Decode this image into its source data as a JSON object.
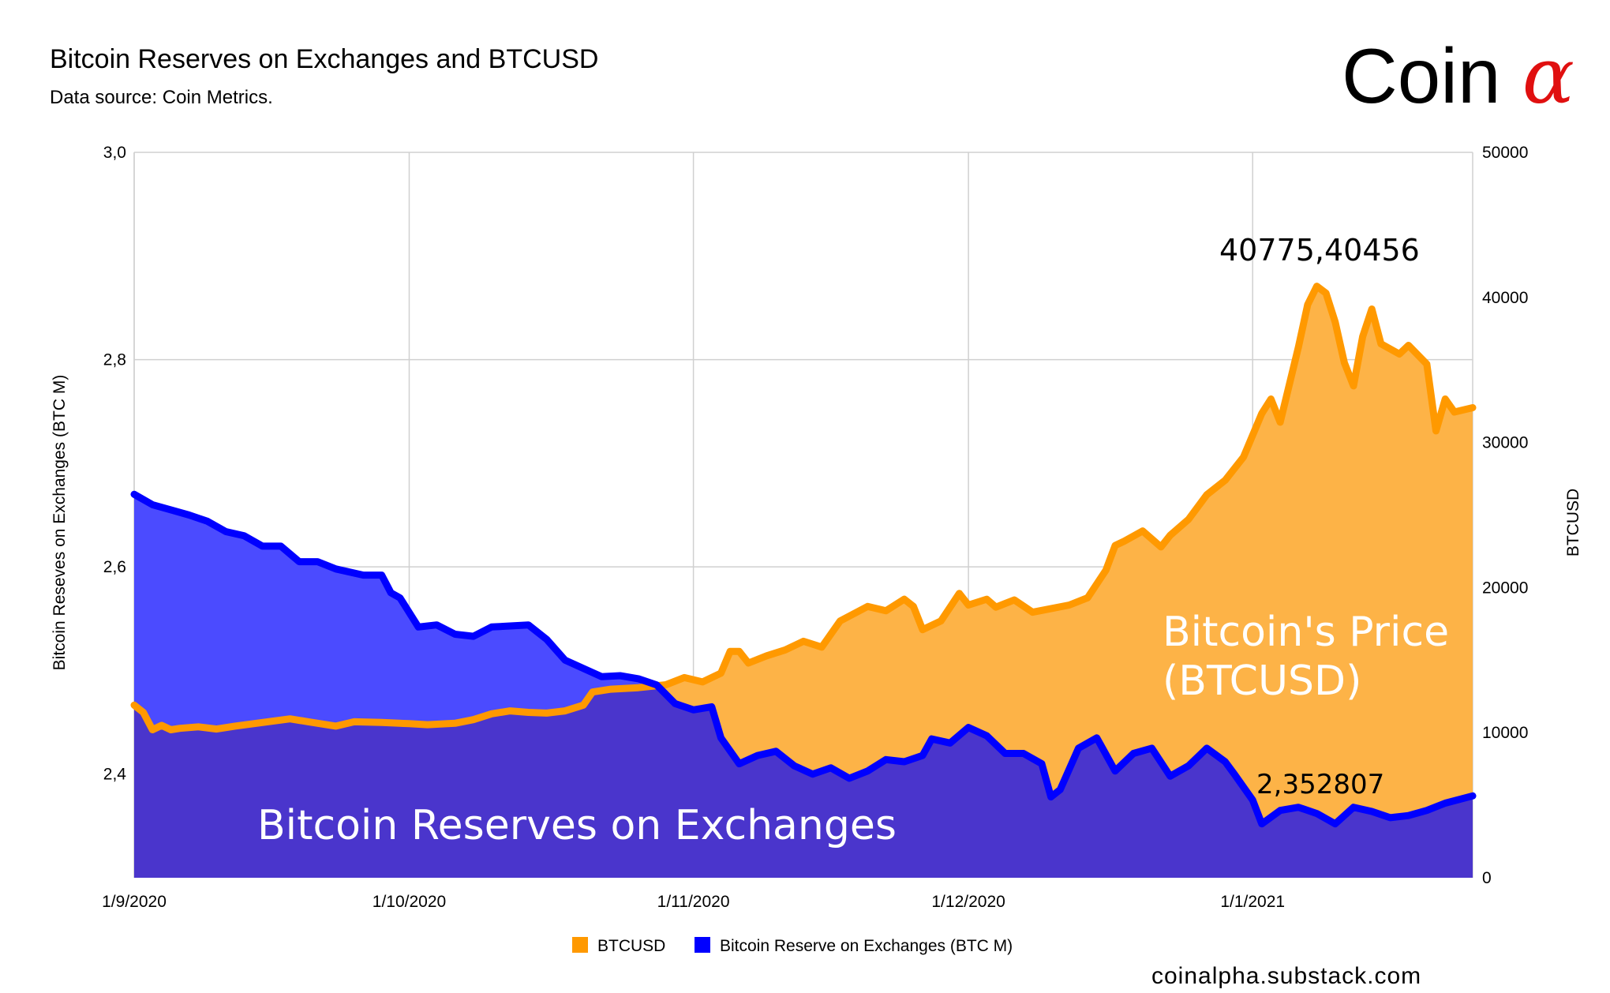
{
  "header": {
    "title": "Bitcoin Reserves on Exchanges and BTCUSD",
    "subtitle": "Data source: Coin Metrics.",
    "brand_text": "Coin",
    "brand_symbol": "α",
    "footer": "coinalpha.substack.com"
  },
  "colors": {
    "btcusd_line": "#ff9900",
    "btcusd_fill": "#fdb347",
    "reserve_line": "#0000ff",
    "reserve_fill_alone": "#4b4bff",
    "reserve_fill_overlap": "#4a35cc",
    "grid": "#d0d0d0",
    "brand_alpha": "#e01010"
  },
  "chart_data": {
    "type": "area",
    "title": "Bitcoin Reserves on Exchanges and BTCUSD",
    "x_tick_labels": [
      "1/9/2020",
      "1/10/2020",
      "1/11/2020",
      "1/12/2020",
      "1/1/2021"
    ],
    "x_range": [
      "2020-09-01",
      "2021-01-25"
    ],
    "y_left": {
      "label": "Bitcoin Reseves on Exchanges (BTC M)",
      "range": [
        2.3,
        3.0
      ],
      "tick_labels": [
        "2,4",
        "2,6",
        "2,8",
        "3,0"
      ]
    },
    "y_right": {
      "label": "BTCUSD",
      "range": [
        0,
        50000
      ],
      "tick_labels": [
        "0",
        "10000",
        "20000",
        "30000",
        "40000",
        "50000"
      ]
    },
    "grid": true,
    "legend_position": "bottom",
    "legend": [
      "BTCUSD",
      "Bitcoin Reserve on Exchanges (BTC M)"
    ],
    "annotations": {
      "peak_label": "40775,40456",
      "last_reserve_label": "2,352807",
      "price_area_label": [
        "Bitcoin's Price",
        "(BTCUSD)"
      ],
      "reserve_area_label": "Bitcoin Reserves on Exchanges"
    },
    "series": [
      {
        "name": "BTCUSD",
        "axis": "right",
        "points": [
          [
            "2020-09-01",
            11900
          ],
          [
            "2020-09-02",
            11400
          ],
          [
            "2020-09-03",
            10200
          ],
          [
            "2020-09-04",
            10500
          ],
          [
            "2020-09-05",
            10200
          ],
          [
            "2020-09-06",
            10300
          ],
          [
            "2020-09-08",
            10400
          ],
          [
            "2020-09-10",
            10250
          ],
          [
            "2020-09-12",
            10450
          ],
          [
            "2020-09-15",
            10700
          ],
          [
            "2020-09-18",
            10950
          ],
          [
            "2020-09-20",
            10750
          ],
          [
            "2020-09-23",
            10450
          ],
          [
            "2020-09-25",
            10750
          ],
          [
            "2020-09-28",
            10700
          ],
          [
            "2020-10-01",
            10620
          ],
          [
            "2020-10-03",
            10550
          ],
          [
            "2020-10-06",
            10650
          ],
          [
            "2020-10-08",
            10900
          ],
          [
            "2020-10-10",
            11300
          ],
          [
            "2020-10-12",
            11500
          ],
          [
            "2020-10-14",
            11400
          ],
          [
            "2020-10-16",
            11350
          ],
          [
            "2020-10-18",
            11500
          ],
          [
            "2020-10-20",
            11900
          ],
          [
            "2020-10-21",
            12800
          ],
          [
            "2020-10-23",
            13000
          ],
          [
            "2020-10-26",
            13100
          ],
          [
            "2020-10-29",
            13300
          ],
          [
            "2020-10-31",
            13800
          ],
          [
            "2020-11-02",
            13500
          ],
          [
            "2020-11-04",
            14100
          ],
          [
            "2020-11-05",
            15600
          ],
          [
            "2020-11-06",
            15600
          ],
          [
            "2020-11-07",
            14800
          ],
          [
            "2020-11-09",
            15300
          ],
          [
            "2020-11-11",
            15700
          ],
          [
            "2020-11-13",
            16300
          ],
          [
            "2020-11-15",
            15900
          ],
          [
            "2020-11-17",
            17700
          ],
          [
            "2020-11-20",
            18700
          ],
          [
            "2020-11-22",
            18400
          ],
          [
            "2020-11-24",
            19200
          ],
          [
            "2020-11-25",
            18700
          ],
          [
            "2020-11-26",
            17100
          ],
          [
            "2020-11-28",
            17700
          ],
          [
            "2020-11-30",
            19600
          ],
          [
            "2020-12-01",
            18800
          ],
          [
            "2020-12-03",
            19200
          ],
          [
            "2020-12-04",
            18650
          ],
          [
            "2020-12-06",
            19150
          ],
          [
            "2020-12-08",
            18300
          ],
          [
            "2020-12-10",
            18550
          ],
          [
            "2020-12-12",
            18800
          ],
          [
            "2020-12-14",
            19300
          ],
          [
            "2020-12-16",
            21200
          ],
          [
            "2020-12-17",
            22900
          ],
          [
            "2020-12-18",
            23200
          ],
          [
            "2020-12-20",
            23900
          ],
          [
            "2020-12-22",
            22800
          ],
          [
            "2020-12-23",
            23600
          ],
          [
            "2020-12-25",
            24700
          ],
          [
            "2020-12-27",
            26400
          ],
          [
            "2020-12-29",
            27400
          ],
          [
            "2020-12-31",
            29000
          ],
          [
            "2021-01-02",
            32000
          ],
          [
            "2021-01-03",
            33000
          ],
          [
            "2021-01-04",
            31400
          ],
          [
            "2021-01-06",
            36600
          ],
          [
            "2021-01-07",
            39500
          ],
          [
            "2021-01-08",
            40775
          ],
          [
            "2021-01-09",
            40300
          ],
          [
            "2021-01-10",
            38300
          ],
          [
            "2021-01-11",
            35500
          ],
          [
            "2021-01-12",
            33900
          ],
          [
            "2021-01-13",
            37300
          ],
          [
            "2021-01-14",
            39200
          ],
          [
            "2021-01-15",
            36800
          ],
          [
            "2021-01-17",
            36100
          ],
          [
            "2021-01-18",
            36700
          ],
          [
            "2021-01-20",
            35400
          ],
          [
            "2021-01-21",
            30800
          ],
          [
            "2021-01-22",
            33000
          ],
          [
            "2021-01-23",
            32100
          ],
          [
            "2021-01-25",
            32400
          ]
        ]
      },
      {
        "name": "Bitcoin Reserve on Exchanges (BTC M)",
        "axis": "left",
        "points": [
          [
            "2020-09-01",
            2.67
          ],
          [
            "2020-09-03",
            2.66
          ],
          [
            "2020-09-05",
            2.655
          ],
          [
            "2020-09-07",
            2.65
          ],
          [
            "2020-09-09",
            2.644
          ],
          [
            "2020-09-11",
            2.634
          ],
          [
            "2020-09-13",
            2.63
          ],
          [
            "2020-09-15",
            2.62
          ],
          [
            "2020-09-17",
            2.62
          ],
          [
            "2020-09-19",
            2.605
          ],
          [
            "2020-09-21",
            2.605
          ],
          [
            "2020-09-23",
            2.598
          ],
          [
            "2020-09-26",
            2.592
          ],
          [
            "2020-09-28",
            2.592
          ],
          [
            "2020-09-29",
            2.575
          ],
          [
            "2020-09-30",
            2.57
          ],
          [
            "2020-10-02",
            2.542
          ],
          [
            "2020-10-04",
            2.544
          ],
          [
            "2020-10-06",
            2.535
          ],
          [
            "2020-10-08",
            2.533
          ],
          [
            "2020-10-10",
            2.542
          ],
          [
            "2020-10-14",
            2.544
          ],
          [
            "2020-10-16",
            2.53
          ],
          [
            "2020-10-18",
            2.51
          ],
          [
            "2020-10-20",
            2.502
          ],
          [
            "2020-10-22",
            2.494
          ],
          [
            "2020-10-24",
            2.495
          ],
          [
            "2020-10-26",
            2.492
          ],
          [
            "2020-10-28",
            2.486
          ],
          [
            "2020-10-30",
            2.468
          ],
          [
            "2020-11-01",
            2.462
          ],
          [
            "2020-11-03",
            2.465
          ],
          [
            "2020-11-04",
            2.435
          ],
          [
            "2020-11-06",
            2.41
          ],
          [
            "2020-11-08",
            2.418
          ],
          [
            "2020-11-10",
            2.422
          ],
          [
            "2020-11-12",
            2.408
          ],
          [
            "2020-11-14",
            2.4
          ],
          [
            "2020-11-16",
            2.406
          ],
          [
            "2020-11-18",
            2.396
          ],
          [
            "2020-11-20",
            2.403
          ],
          [
            "2020-11-22",
            2.414
          ],
          [
            "2020-11-24",
            2.412
          ],
          [
            "2020-11-26",
            2.418
          ],
          [
            "2020-11-27",
            2.434
          ],
          [
            "2020-11-29",
            2.43
          ],
          [
            "2020-12-01",
            2.445
          ],
          [
            "2020-12-03",
            2.437
          ],
          [
            "2020-12-05",
            2.42
          ],
          [
            "2020-12-07",
            2.42
          ],
          [
            "2020-12-09",
            2.41
          ],
          [
            "2020-12-10",
            2.378
          ],
          [
            "2020-12-11",
            2.385
          ],
          [
            "2020-12-13",
            2.425
          ],
          [
            "2020-12-15",
            2.435
          ],
          [
            "2020-12-17",
            2.403
          ],
          [
            "2020-12-19",
            2.42
          ],
          [
            "2020-12-21",
            2.425
          ],
          [
            "2020-12-23",
            2.398
          ],
          [
            "2020-12-25",
            2.408
          ],
          [
            "2020-12-27",
            2.425
          ],
          [
            "2020-12-29",
            2.412
          ],
          [
            "2020-12-30",
            2.4
          ],
          [
            "2021-01-01",
            2.375
          ],
          [
            "2021-01-02",
            2.352
          ],
          [
            "2021-01-04",
            2.365
          ],
          [
            "2021-01-06",
            2.368
          ],
          [
            "2021-01-08",
            2.362
          ],
          [
            "2021-01-10",
            2.352
          ],
          [
            "2021-01-12",
            2.368
          ],
          [
            "2021-01-14",
            2.364
          ],
          [
            "2021-01-16",
            2.358
          ],
          [
            "2021-01-18",
            2.36
          ],
          [
            "2021-01-20",
            2.365
          ],
          [
            "2021-01-22",
            2.372
          ],
          [
            "2021-01-25",
            2.379
          ]
        ]
      }
    ]
  }
}
